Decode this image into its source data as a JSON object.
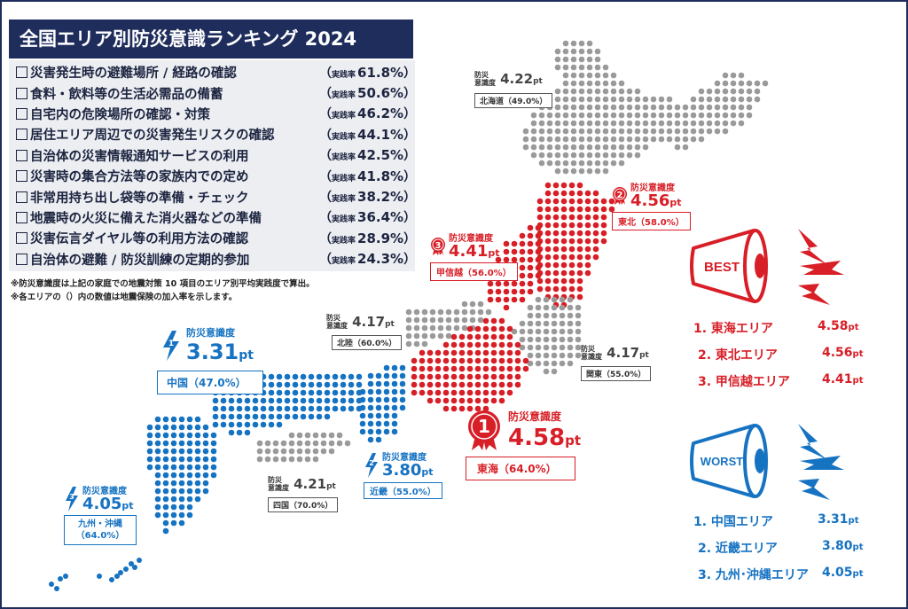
{
  "title": "全国エリア別防災意識ランキング 2024",
  "checklist": [
    {
      "label": "災害発生時の避難場所 / 経路の確認",
      "rate_prefix": "実践率",
      "rate": "61.8%"
    },
    {
      "label": "食料・飲料等の生活必需品の備蓄",
      "rate_prefix": "実践率",
      "rate": "50.6%"
    },
    {
      "label": "自宅内の危険場所の確認・対策",
      "rate_prefix": "実践率",
      "rate": "46.2%"
    },
    {
      "label": "居住エリア周辺での災害発生リスクの確認",
      "rate_prefix": "実践率",
      "rate": "44.1%"
    },
    {
      "label": "自治体の災害情報通知サービスの利用",
      "rate_prefix": "実践率",
      "rate": "42.5%"
    },
    {
      "label": "災害時の集合方法等の家族内での定め",
      "rate_prefix": "実践率",
      "rate": "41.8%"
    },
    {
      "label": "非常用持ち出し袋等の準備・チェック",
      "rate_prefix": "実践率",
      "rate": "38.2%"
    },
    {
      "label": "地震時の火災に備えた消火器などの準備",
      "rate_prefix": "実践率",
      "rate": "36.4%"
    },
    {
      "label": "災害伝言ダイヤル等の利用方法の確認",
      "rate_prefix": "実践率",
      "rate": "28.9%"
    },
    {
      "label": "自治体の避難 / 防災訓練の定期的参加",
      "rate_prefix": "実践率",
      "rate": "24.3%"
    }
  ],
  "notes": [
    "※防災意識度は上記の家庭での地震対策 10 項目のエリア別平均実践度で算出。",
    "※各エリアの（）内の数値は地震保険の加入率を示します。"
  ],
  "keyword_stacked": "防災\n意識度",
  "keyword": "防災意識度",
  "unit": "pt",
  "regions": {
    "hokkaido": {
      "score": "4.22",
      "name": "北海道（49.0%）"
    },
    "tohoku": {
      "rank": "2",
      "score": "4.56",
      "name": "東北（58.0%）"
    },
    "koshinetsu": {
      "rank": "3",
      "score": "4.41",
      "name": "甲信越（56.0%）"
    },
    "hokuriku": {
      "score": "4.17",
      "name": "北陸（60.0%）"
    },
    "kanto": {
      "score": "4.17",
      "name": "関東（55.0%）"
    },
    "tokai": {
      "rank": "1",
      "score": "4.58",
      "name": "東海（64.0%）"
    },
    "chugoku": {
      "rank": "1",
      "score": "3.31",
      "name": "中国（47.0%）"
    },
    "kinki": {
      "rank": "2",
      "score": "3.80",
      "name": "近畿（55.0%）"
    },
    "shikoku": {
      "score": "4.21",
      "name": "四国（70.0%）"
    },
    "kyushu": {
      "rank": "3",
      "score": "4.05",
      "name_line1": "九州・沖縄",
      "name_line2": "（64.0%）"
    }
  },
  "best": {
    "heading": "BEST",
    "items": [
      {
        "label": "1. 東海エリア",
        "value": "4.58"
      },
      {
        "label": "2. 東北エリア",
        "value": "4.56"
      },
      {
        "label": "3. 甲信越エリア",
        "value": "4.41"
      }
    ]
  },
  "worst": {
    "heading": "WORST",
    "items": [
      {
        "label": "1. 中国エリア",
        "value": "3.31"
      },
      {
        "label": "2. 近畿エリア",
        "value": "3.80"
      },
      {
        "label": "3. 九州･沖縄エリア",
        "value": "4.05"
      }
    ]
  },
  "colors": {
    "navy": "#1f2d5c",
    "red": "#d81e26",
    "blue": "#1673c2",
    "gray": "#9a9a9a"
  }
}
